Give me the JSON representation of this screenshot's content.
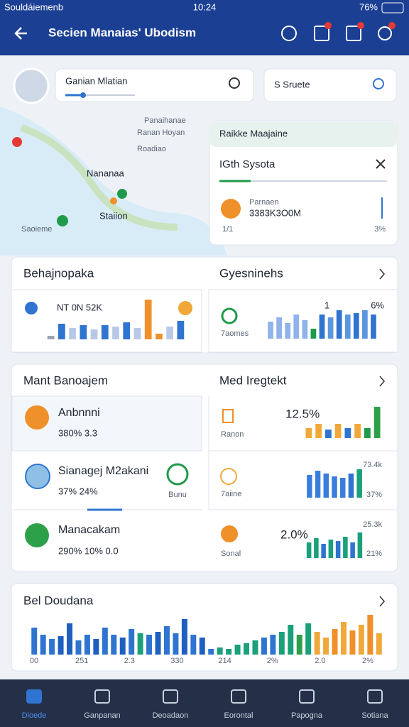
{
  "status_bar": {
    "carrier": "Souldáiemenb",
    "time": "10:24",
    "battery": "76%"
  },
  "header": {
    "title": "Secien Manaias' Ubodism"
  },
  "search": {
    "primary": "Ganian Mlatian",
    "secondary": "S Sruete"
  },
  "map": {
    "labels": [
      "Panaihanae",
      "Ranan Hoyan",
      "Roadiao",
      "Nananaa",
      "Staiion",
      "Saoieme"
    ]
  },
  "route_card": {
    "title": "Raikke Maajaine",
    "subtitle": "IGth Sysota",
    "caption": "Parnaen",
    "code": "3383K3O0M",
    "page": "1/1",
    "percent": "3%"
  },
  "summary_left": {
    "title": "Behajnopaka",
    "stats": "NT 0N 52K",
    "chart": {
      "values": [
        5,
        22,
        16,
        20,
        14,
        20,
        18,
        24,
        16,
        56,
        8,
        18,
        26
      ],
      "colors": [
        "#9aa4b4",
        "#2f74d0",
        "#b7c9e6",
        "#2f74d0",
        "#b7c9e6",
        "#2f74d0",
        "#b7c9e6",
        "#2f74d0",
        "#b7c9e6",
        "#f0902a",
        "#f0902a",
        "#b7c9e6",
        "#2f74d0"
      ]
    }
  },
  "summary_right": {
    "title": "Gyesninehs",
    "caption": "7aomes",
    "peak": "1",
    "percent": "6%",
    "chart": {
      "values": [
        24,
        30,
        22,
        34,
        26,
        14,
        34,
        30,
        40,
        34,
        36,
        40,
        34
      ],
      "colors": [
        "#8fb3ea",
        "#8fb3ea",
        "#8fb3ea",
        "#8fb3ea",
        "#8fb3ea",
        "#1f9a4a",
        "#2f74d0",
        "#5d96e0",
        "#2f74d0",
        "#5d96e0",
        "#2f74d0",
        "#5d96e0",
        "#2f74d0"
      ]
    }
  },
  "management": {
    "title": "Mant Banoajem",
    "detail_title": "Med Iregtekt",
    "items": [
      {
        "name": "Anbnnni",
        "stats": "380% 3.3"
      },
      {
        "name": "Sianagej M2akani",
        "stats": "37% 24%",
        "badge": "Bunu"
      },
      {
        "name": "Manacakam",
        "stats": "290% 10% 0.0"
      }
    ],
    "details": [
      {
        "caption": "Ranon",
        "value": "12.5%",
        "chart": {
          "values": [
            14,
            20,
            12,
            20,
            14,
            20,
            14,
            44
          ],
          "colors": [
            "#f0a83a",
            "#f0a83a",
            "#2f74d0",
            "#f0a83a",
            "#2f74d0",
            "#f0a83a",
            "#1f9a4a",
            "#2ea04a"
          ]
        }
      },
      {
        "caption": "7aiine",
        "value": "73.4k",
        "percent": "37%",
        "chart": {
          "values": [
            32,
            38,
            34,
            30,
            28,
            34,
            40
          ],
          "colors": [
            "#3b7ddc",
            "#3b7ddc",
            "#3b7ddc",
            "#3b7ddc",
            "#3b7ddc",
            "#2f74d0",
            "#1aa07a"
          ]
        }
      },
      {
        "caption": "Sonal",
        "value": "2.0%",
        "top": "25.3k",
        "percent": "21%",
        "chart": {
          "values": [
            22,
            28,
            20,
            26,
            24,
            30,
            22,
            36
          ],
          "colors": [
            "#1aa07a",
            "#1aa07a",
            "#2f74d0",
            "#1aa07a",
            "#2f74d0",
            "#1aa07a",
            "#2f74d0",
            "#1aa07a"
          ]
        }
      }
    ]
  },
  "bottom": {
    "title": "Bel Doudana",
    "axis_labels": [
      "00",
      "251",
      "2.3",
      "330",
      "214",
      "2%",
      "2.0",
      "2%"
    ],
    "chart": {
      "values": [
        38,
        28,
        22,
        26,
        44,
        20,
        28,
        22,
        38,
        28,
        24,
        36,
        30,
        28,
        32,
        40,
        30,
        50,
        28,
        24,
        8,
        10,
        8,
        14,
        16,
        20,
        24,
        28,
        32,
        42,
        28,
        44,
        32,
        24,
        36,
        46,
        34,
        42,
        56,
        30
      ],
      "colors": [
        "#2f74d0",
        "#2f74d0",
        "#2f74d0",
        "#1f5fbf",
        "#1f5fbf",
        "#2f74d0",
        "#2f74d0",
        "#1f5fbf",
        "#2f74d0",
        "#2f74d0",
        "#1f5fbf",
        "#2f74d0",
        "#1aa07a",
        "#2f74d0",
        "#1f5fbf",
        "#2f74d0",
        "#2f74d0",
        "#1f5fbf",
        "#2f74d0",
        "#1f5fbf",
        "#2f74d0",
        "#1aa07a",
        "#1aa07a",
        "#1aa07a",
        "#1aa07a",
        "#1aa07a",
        "#2f74d0",
        "#2f74d0",
        "#1aa07a",
        "#1aa07a",
        "#2ea04a",
        "#1aa07a",
        "#f0a83a",
        "#f0a83a",
        "#f0902a",
        "#f0a83a",
        "#f0902a",
        "#f0a83a",
        "#f0902a",
        "#f0a83a"
      ]
    }
  },
  "nav": {
    "items": [
      "Dloede",
      "Ganpanan",
      "Deoadaon",
      "Eorontal",
      "Papogna",
      "Sotiana"
    ]
  }
}
